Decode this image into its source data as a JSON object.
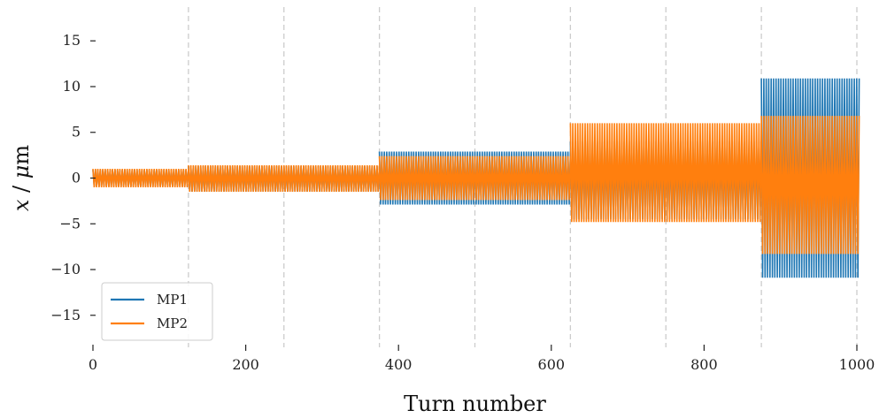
{
  "chart_data": {
    "type": "line",
    "xlabel": "Turn number",
    "ylabel_var": "x",
    "ylabel_sep": " / ",
    "ylabel_unit_prefix": "μ",
    "ylabel_unit": "m",
    "xlim": [
      0,
      1000
    ],
    "ylim": [
      -18.5,
      18.5
    ],
    "xticks": [
      0,
      200,
      400,
      600,
      800,
      1000
    ],
    "xtick_labels": [
      "0",
      "200",
      "400",
      "600",
      "800",
      "1000"
    ],
    "yticks": [
      -15,
      -10,
      -5,
      0,
      5,
      10,
      15
    ],
    "ytick_labels": [
      "−15",
      "−10",
      "−5",
      "0",
      "5",
      "10",
      "15"
    ],
    "vlines": [
      125,
      250,
      375,
      500,
      625,
      750,
      875,
      1000
    ],
    "grid": false,
    "legend_position": "lower-left",
    "series": [
      {
        "name": "MP1",
        "color": "#1f77b4",
        "segments": [
          {
            "start": 0,
            "end": 125,
            "upper": 0.9,
            "lower": -0.9
          },
          {
            "start": 125,
            "end": 375,
            "upper": 1.3,
            "lower": -1.5
          },
          {
            "start": 375,
            "end": 625,
            "upper": 2.9,
            "lower": -2.9
          },
          {
            "start": 625,
            "end": 875,
            "upper": 4.0,
            "lower": -4.5
          },
          {
            "start": 875,
            "end": 1003,
            "upper": 10.9,
            "lower": -10.9
          }
        ]
      },
      {
        "name": "MP2",
        "color": "#ff7f0e",
        "segments": [
          {
            "start": 0,
            "end": 125,
            "upper": 1.0,
            "lower": -1.0
          },
          {
            "start": 125,
            "end": 375,
            "upper": 1.4,
            "lower": -1.5
          },
          {
            "start": 375,
            "end": 625,
            "upper": 2.4,
            "lower": -2.4
          },
          {
            "start": 625,
            "end": 875,
            "upper": 6.0,
            "lower": -4.8
          },
          {
            "start": 875,
            "end": 1003,
            "upper": 6.8,
            "lower": -8.3
          }
        ]
      }
    ]
  }
}
